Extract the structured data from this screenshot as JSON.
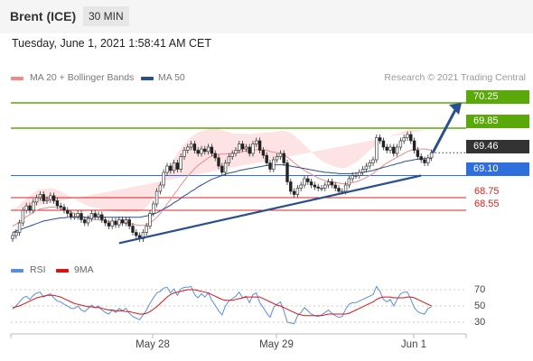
{
  "header": {
    "title": "Brent (ICE)",
    "interval": "30 MIN",
    "timestamp": "Tuesday, June 1, 2021 1:58:41 AM CET"
  },
  "legend": {
    "ma20_label": "MA 20 + Bollinger Bands",
    "ma50_label": "MA 50",
    "copyright": "Research © 2021 Trading Central",
    "rsi_label": "RSI",
    "ma9_label": "9MA"
  },
  "colors": {
    "ma20": "#f08a8a",
    "ma50": "#2a4f8f",
    "bollinger_fill": "#fde3e3",
    "resistance": "#5ba80a",
    "support_blue": "#2f6fdc",
    "support_red": "#e02020",
    "last_price": "#333333",
    "trendline": "#2a4f8f",
    "rsi": "#5a8fd8",
    "rsi_ma": "#dd1111"
  },
  "chart_data": {
    "type": "candlestick",
    "x_labels": [
      "May 28",
      "May 29",
      "Jun 1"
    ],
    "ylim": [
      67.95,
      70.45
    ],
    "levels": [
      {
        "label": "70.25",
        "value": 70.25,
        "kind": "resistance"
      },
      {
        "label": "69.85",
        "value": 69.85,
        "kind": "resistance"
      },
      {
        "label": "69.46",
        "value": 69.46,
        "kind": "last"
      },
      {
        "label": "69.10",
        "value": 69.1,
        "kind": "support-blue"
      },
      {
        "label": "68.75",
        "value": 68.75,
        "kind": "support-red"
      },
      {
        "label": "68.55",
        "value": 68.55,
        "kind": "support-red"
      }
    ],
    "closes": [
      68.15,
      68.2,
      68.35,
      68.55,
      68.62,
      68.55,
      68.68,
      68.75,
      68.8,
      68.7,
      68.72,
      68.78,
      68.7,
      68.62,
      68.6,
      68.55,
      68.5,
      68.45,
      68.45,
      68.5,
      68.4,
      68.35,
      68.42,
      68.5,
      68.45,
      68.48,
      68.4,
      68.35,
      68.3,
      68.38,
      68.32,
      68.4,
      68.35,
      68.4,
      68.3,
      68.2,
      68.15,
      68.1,
      68.2,
      68.3,
      68.5,
      68.65,
      68.85,
      68.95,
      69.15,
      69.25,
      69.18,
      69.3,
      69.2,
      69.4,
      69.5,
      69.55,
      69.6,
      69.5,
      69.45,
      69.52,
      69.48,
      69.55,
      69.45,
      69.38,
      69.25,
      69.15,
      69.3,
      69.4,
      69.45,
      69.5,
      69.6,
      69.52,
      69.55,
      69.45,
      69.6,
      69.65,
      69.5,
      69.42,
      69.3,
      69.2,
      69.35,
      69.4,
      69.45,
      69.3,
      69.0,
      68.85,
      68.8,
      68.9,
      68.95,
      69.05,
      69.0,
      68.95,
      68.92,
      68.9,
      68.9,
      68.95,
      69.0,
      68.95,
      68.9,
      68.85,
      68.85,
      68.95,
      69.05,
      69.1,
      69.1,
      69.15,
      69.2,
      69.25,
      69.3,
      69.35,
      69.7,
      69.65,
      69.55,
      69.5,
      69.55,
      69.45,
      69.55,
      69.65,
      69.7,
      69.75,
      69.65,
      69.5,
      69.4,
      69.35,
      69.3,
      69.38,
      69.46
    ],
    "ma20": [
      68.3,
      68.33,
      68.37,
      68.41,
      68.45,
      68.48,
      68.52,
      68.55,
      68.57,
      68.58,
      68.59,
      68.6,
      68.6,
      68.59,
      68.58,
      68.56,
      68.54,
      68.52,
      68.5,
      68.48,
      68.46,
      68.44,
      68.42,
      68.41,
      68.4,
      68.4,
      68.39,
      68.38,
      68.37,
      68.36,
      68.35,
      68.35,
      68.35,
      68.34,
      68.34,
      68.33,
      68.32,
      68.31,
      68.31,
      68.32,
      68.35,
      68.39,
      68.44,
      68.5,
      68.57,
      68.65,
      68.72,
      68.8,
      68.87,
      68.95,
      69.02,
      69.09,
      69.15,
      69.21,
      69.26,
      69.3,
      69.34,
      69.38,
      69.41,
      69.43,
      69.44,
      69.44,
      69.44,
      69.45,
      69.45,
      69.46,
      69.47,
      69.48,
      69.49,
      69.49,
      69.5,
      69.51,
      69.51,
      69.51,
      69.5,
      69.48,
      69.47,
      69.46,
      69.45,
      69.43,
      69.39,
      69.35,
      69.3,
      69.26,
      69.22,
      69.18,
      69.15,
      69.12,
      69.09,
      69.06,
      69.04,
      69.02,
      69.01,
      69.0,
      68.99,
      68.98,
      68.97,
      68.97,
      68.98,
      68.99,
      69.0,
      69.02,
      69.04,
      69.07,
      69.1,
      69.13,
      69.18,
      69.22,
      69.26,
      69.3,
      69.33,
      69.36,
      69.39,
      69.42,
      69.45,
      69.48,
      69.5,
      69.51,
      69.52,
      69.52,
      69.52,
      69.51,
      69.5
    ],
    "ma50": [
      68.2,
      68.22,
      68.24,
      68.26,
      68.28,
      68.3,
      68.32,
      68.34,
      68.36,
      68.38,
      68.39,
      68.4,
      68.41,
      68.42,
      68.43,
      68.43,
      68.44,
      68.44,
      68.44,
      68.44,
      68.44,
      68.44,
      68.44,
      68.44,
      68.44,
      68.44,
      68.44,
      68.44,
      68.44,
      68.44,
      68.44,
      68.44,
      68.44,
      68.44,
      68.44,
      68.44,
      68.44,
      68.44,
      68.45,
      68.46,
      68.47,
      68.49,
      68.51,
      68.54,
      68.57,
      68.6,
      68.63,
      68.67,
      68.7,
      68.74,
      68.78,
      68.81,
      68.85,
      68.88,
      68.92,
      68.95,
      68.98,
      69.01,
      69.04,
      69.06,
      69.08,
      69.1,
      69.12,
      69.14,
      69.15,
      69.16,
      69.18,
      69.19,
      69.2,
      69.21,
      69.22,
      69.23,
      69.24,
      69.25,
      69.26,
      69.26,
      69.27,
      69.27,
      69.27,
      69.27,
      69.26,
      69.25,
      69.24,
      69.23,
      69.22,
      69.21,
      69.2,
      69.19,
      69.18,
      69.17,
      69.16,
      69.15,
      69.15,
      69.14,
      69.14,
      69.13,
      69.13,
      69.13,
      69.13,
      69.13,
      69.14,
      69.14,
      69.15,
      69.16,
      69.17,
      69.18,
      69.2,
      69.21,
      69.23,
      69.24,
      69.26,
      69.27,
      69.29,
      69.3,
      69.32,
      69.33,
      69.34,
      69.35,
      69.36,
      69.36,
      69.37,
      69.37,
      69.37
    ],
    "bb_width": [
      0.25,
      0.26,
      0.27,
      0.28,
      0.29,
      0.3,
      0.3,
      0.31,
      0.31,
      0.31,
      0.3,
      0.3,
      0.29,
      0.28,
      0.27,
      0.26,
      0.25,
      0.24,
      0.23,
      0.22,
      0.21,
      0.2,
      0.2,
      0.19,
      0.19,
      0.18,
      0.18,
      0.18,
      0.18,
      0.18,
      0.18,
      0.18,
      0.18,
      0.18,
      0.18,
      0.19,
      0.2,
      0.22,
      0.25,
      0.28,
      0.32,
      0.36,
      0.4,
      0.44,
      0.48,
      0.52,
      0.54,
      0.56,
      0.58,
      0.58,
      0.58,
      0.57,
      0.56,
      0.54,
      0.52,
      0.5,
      0.48,
      0.46,
      0.44,
      0.42,
      0.4,
      0.38,
      0.36,
      0.34,
      0.32,
      0.3,
      0.29,
      0.28,
      0.27,
      0.26,
      0.26,
      0.26,
      0.26,
      0.27,
      0.28,
      0.3,
      0.32,
      0.34,
      0.36,
      0.38,
      0.4,
      0.42,
      0.43,
      0.43,
      0.42,
      0.4,
      0.38,
      0.36,
      0.34,
      0.32,
      0.3,
      0.28,
      0.27,
      0.26,
      0.25,
      0.24,
      0.24,
      0.25,
      0.27,
      0.29,
      0.31,
      0.33,
      0.36,
      0.38,
      0.4,
      0.41,
      0.42,
      0.42,
      0.41,
      0.4,
      0.39,
      0.38,
      0.37,
      0.36,
      0.35,
      0.34,
      0.33,
      0.32,
      0.31,
      0.3,
      0.3
    ],
    "trendline": {
      "start": {
        "t": 31,
        "value": 68.03
      },
      "end": {
        "t": 119,
        "value": 69.1
      }
    },
    "projection": {
      "start": {
        "t": 120,
        "value": 69.46
      },
      "end": {
        "t": 125,
        "value": 70.25
      }
    },
    "rsi": {
      "ylim": [
        20,
        80
      ],
      "ticks": [
        70,
        50,
        30
      ],
      "rsi": [
        46,
        50,
        55,
        60,
        62,
        58,
        63,
        66,
        67,
        61,
        63,
        65,
        60,
        56,
        55,
        52,
        50,
        47,
        47,
        50,
        45,
        43,
        47,
        51,
        48,
        50,
        45,
        42,
        40,
        45,
        42,
        47,
        44,
        47,
        41,
        37,
        35,
        33,
        39,
        45,
        53,
        60,
        66,
        68,
        72,
        73,
        66,
        71,
        63,
        71,
        73,
        73,
        74,
        64,
        60,
        65,
        61,
        66,
        57,
        51,
        44,
        39,
        50,
        56,
        59,
        62,
        67,
        60,
        62,
        54,
        64,
        66,
        54,
        48,
        41,
        36,
        48,
        52,
        55,
        44,
        30,
        29,
        28,
        38,
        42,
        48,
        44,
        40,
        38,
        37,
        39,
        42,
        45,
        41,
        38,
        36,
        37,
        46,
        52,
        54,
        54,
        56,
        58,
        60,
        62,
        64,
        74,
        68,
        58,
        55,
        58,
        50,
        58,
        65,
        67,
        67,
        58,
        48,
        43,
        41,
        40,
        47,
        49
      ],
      "ma9": [
        48,
        49,
        50,
        52,
        54,
        56,
        58,
        60,
        61,
        62,
        63,
        63,
        63,
        62,
        61,
        59,
        57,
        55,
        53,
        52,
        51,
        50,
        49,
        49,
        48,
        48,
        47,
        46,
        45,
        45,
        44,
        44,
        44,
        43,
        43,
        42,
        41,
        40,
        40,
        41,
        43,
        46,
        49,
        53,
        57,
        61,
        64,
        66,
        67,
        68,
        69,
        70,
        70,
        70,
        69,
        68,
        67,
        66,
        64,
        62,
        60,
        58,
        57,
        57,
        57,
        58,
        59,
        60,
        61,
        61,
        61,
        61,
        61,
        59,
        57,
        55,
        53,
        51,
        50,
        48,
        46,
        44,
        42,
        40,
        39,
        38,
        38,
        38,
        38,
        38,
        38,
        39,
        40,
        40,
        40,
        40,
        40,
        40,
        41,
        43,
        45,
        47,
        49,
        51,
        53,
        55,
        58,
        60,
        61,
        61,
        61,
        60,
        60,
        60,
        60,
        61,
        61,
        60,
        58,
        56,
        54,
        52,
        50
      ]
    }
  }
}
